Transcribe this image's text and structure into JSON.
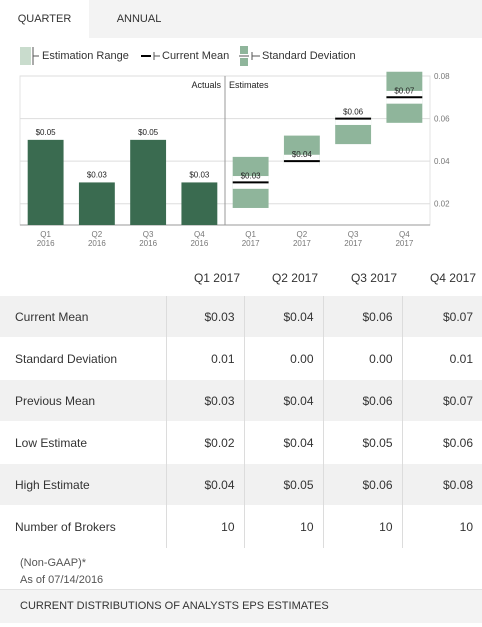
{
  "tabs": [
    {
      "label": "QUARTER",
      "active": true
    },
    {
      "label": "ANNUAL",
      "active": false
    }
  ],
  "legend": {
    "estimation_range": "Estimation Range",
    "current_mean": "Current Mean",
    "standard_deviation": "Standard Deviation"
  },
  "colors": {
    "actual_bar": "#3a6b50",
    "estimate_range": "#8fb59b",
    "mean_line": "#000000",
    "grid": "#dddddd"
  },
  "chart_data": {
    "type": "bar",
    "section_labels": {
      "actuals": "Actuals",
      "estimates": "Estimates"
    },
    "categories": [
      {
        "quarter": "Q1",
        "year": "2016"
      },
      {
        "quarter": "Q2",
        "year": "2016"
      },
      {
        "quarter": "Q3",
        "year": "2016"
      },
      {
        "quarter": "Q4",
        "year": "2016"
      },
      {
        "quarter": "Q1",
        "year": "2017"
      },
      {
        "quarter": "Q2",
        "year": "2017"
      },
      {
        "quarter": "Q3",
        "year": "2017"
      },
      {
        "quarter": "Q4",
        "year": "2017"
      }
    ],
    "actuals": [
      {
        "value": 0.05,
        "label": "$0.05"
      },
      {
        "value": 0.03,
        "label": "$0.03"
      },
      {
        "value": 0.05,
        "label": "$0.05"
      },
      {
        "value": 0.03,
        "label": "$0.03"
      }
    ],
    "estimates": [
      {
        "mean": 0.03,
        "low": 0.02,
        "high": 0.04,
        "std": 0.01,
        "label": "$0.03"
      },
      {
        "mean": 0.04,
        "low": 0.04,
        "high": 0.05,
        "std": 0.0,
        "label": "$0.04"
      },
      {
        "mean": 0.06,
        "low": 0.05,
        "high": 0.06,
        "std": 0.0,
        "label": "$0.06"
      },
      {
        "mean": 0.07,
        "low": 0.06,
        "high": 0.08,
        "std": 0.01,
        "label": "$0.07"
      }
    ],
    "ylim": [
      0.01,
      0.08
    ],
    "yticks": [
      0.02,
      0.04,
      0.06,
      0.08
    ],
    "ytick_labels": [
      "0.02",
      "0.04",
      "0.06",
      "0.08"
    ],
    "grid": true
  },
  "table": {
    "columns": [
      "Q1 2017",
      "Q2 2017",
      "Q3 2017",
      "Q4 2017"
    ],
    "rows": [
      {
        "label": "Current Mean",
        "values": [
          "$0.03",
          "$0.04",
          "$0.06",
          "$0.07"
        ]
      },
      {
        "label": "Standard Deviation",
        "values": [
          "0.01",
          "0.00",
          "0.00",
          "0.01"
        ]
      },
      {
        "label": "Previous Mean",
        "values": [
          "$0.03",
          "$0.04",
          "$0.06",
          "$0.07"
        ]
      },
      {
        "label": "Low Estimate",
        "values": [
          "$0.02",
          "$0.04",
          "$0.05",
          "$0.06"
        ]
      },
      {
        "label": "High Estimate",
        "values": [
          "$0.04",
          "$0.05",
          "$0.06",
          "$0.08"
        ]
      },
      {
        "label": "Number of Brokers",
        "values": [
          "10",
          "10",
          "10",
          "10"
        ]
      }
    ]
  },
  "notes": {
    "basis": "(Non-GAAP)*",
    "as_of": "As of 07/14/2016"
  },
  "footer": {
    "label": "CURRENT DISTRIBUTIONS OF ANALYSTS EPS ESTIMATES"
  }
}
